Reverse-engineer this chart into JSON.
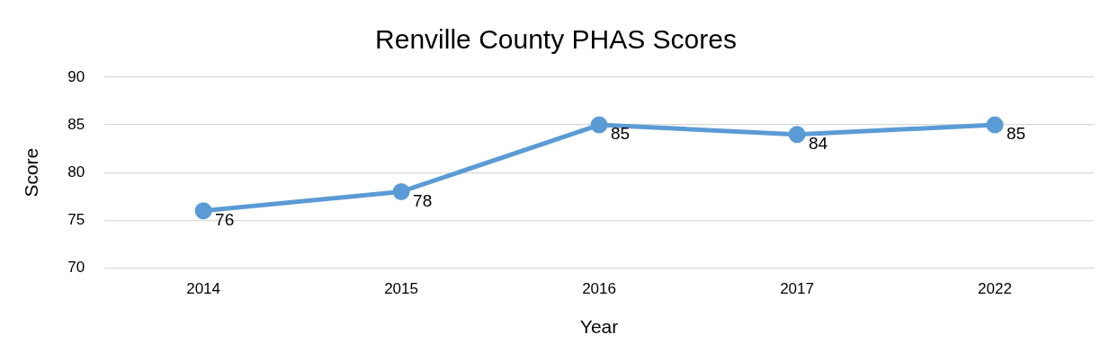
{
  "chart_data": {
    "type": "line",
    "title": "Renville County PHAS Scores",
    "xlabel": "Year",
    "ylabel": "Score",
    "categories": [
      "2014",
      "2015",
      "2016",
      "2017",
      "2022"
    ],
    "series": [
      {
        "color": "#5b9bd5",
        "values": [
          76,
          78,
          85,
          84,
          85
        ]
      }
    ],
    "ylim": [
      70,
      90
    ],
    "yticks": [
      70,
      75,
      80,
      85,
      90
    ],
    "grid": "y",
    "legend": false,
    "marker": "circle",
    "line_style": "solid",
    "data_labels": true
  }
}
